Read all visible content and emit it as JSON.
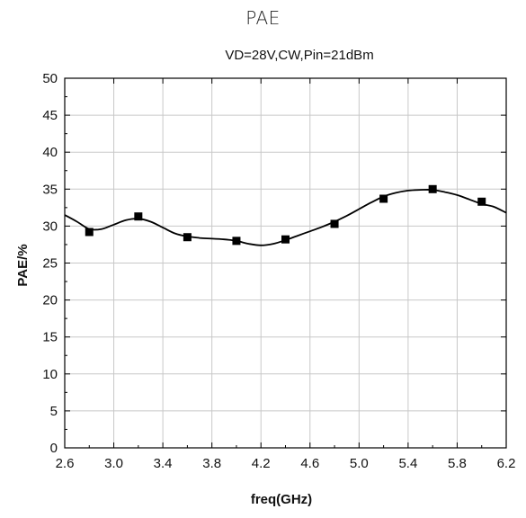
{
  "page_title": "PAE",
  "chart_data": {
    "type": "line",
    "title": "PAE",
    "subtitle": "VD=28V,CW,Pin=21dBm",
    "xlabel": "freq(GHz)",
    "ylabel": "PAE/%",
    "xlim": [
      2.6,
      6.2
    ],
    "ylim": [
      0,
      50
    ],
    "x_ticks": [
      "2.6",
      "3.0",
      "3.4",
      "3.8",
      "4.2",
      "4.6",
      "5.0",
      "5.4",
      "5.8",
      "6.2"
    ],
    "y_ticks": [
      "0",
      "5",
      "10",
      "15",
      "20",
      "25",
      "30",
      "35",
      "40",
      "45",
      "50"
    ],
    "grid": true,
    "series": [
      {
        "markers": {
          "x": [
            2.8,
            3.2,
            3.6,
            4.0,
            4.4,
            4.8,
            5.2,
            5.6,
            6.0
          ],
          "y": [
            29.2,
            31.3,
            28.5,
            28.0,
            28.2,
            30.3,
            33.7,
            35.0,
            33.3
          ]
        },
        "curve": {
          "x": [
            2.6,
            2.7,
            2.8,
            2.9,
            3.0,
            3.1,
            3.2,
            3.3,
            3.4,
            3.5,
            3.6,
            3.7,
            3.8,
            3.9,
            4.0,
            4.1,
            4.2,
            4.3,
            4.4,
            4.5,
            4.6,
            4.7,
            4.8,
            4.9,
            5.0,
            5.1,
            5.2,
            5.3,
            5.4,
            5.5,
            5.6,
            5.7,
            5.8,
            5.9,
            6.0,
            6.1,
            6.2
          ],
          "y": [
            31.5,
            30.6,
            29.6,
            29.6,
            30.2,
            30.8,
            31.0,
            30.6,
            29.8,
            29.0,
            28.6,
            28.4,
            28.3,
            28.2,
            28.0,
            27.6,
            27.4,
            27.6,
            28.1,
            28.7,
            29.3,
            29.9,
            30.6,
            31.4,
            32.3,
            33.2,
            34.0,
            34.5,
            34.8,
            34.9,
            34.9,
            34.6,
            34.2,
            33.6,
            33.0,
            32.6,
            31.8
          ]
        },
        "color": "#000000"
      }
    ]
  }
}
